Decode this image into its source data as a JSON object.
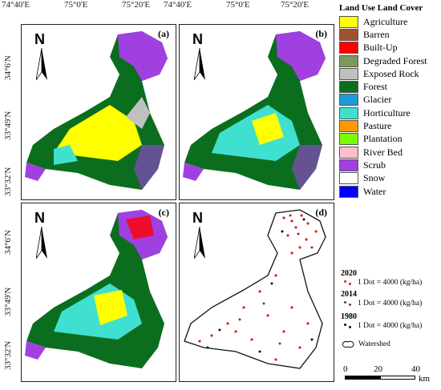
{
  "axes": {
    "top_ticks": [
      "74°40'E",
      "75°0'E",
      "75°20'E"
    ],
    "left_ticks": [
      "34°6'N",
      "33°49'N",
      "33°32'N"
    ]
  },
  "panels": [
    {
      "label": "(a)"
    },
    {
      "label": "(b)"
    },
    {
      "label": "(c)"
    },
    {
      "label": "(d)"
    }
  ],
  "north_label": "N",
  "legend": {
    "title": "Land Use Land Cover",
    "items": [
      {
        "label": "Agriculture",
        "color": "#ffff00"
      },
      {
        "label": "Barren",
        "color": "#a0522d"
      },
      {
        "label": "Built-Up",
        "color": "#ff0000"
      },
      {
        "label": "Degraded Forest",
        "color": "#7a9a5a"
      },
      {
        "label": "Exposed Rock",
        "color": "#c0c0c0"
      },
      {
        "label": "Forest",
        "color": "#0b6e1f"
      },
      {
        "label": "Glacier",
        "color": "#1e9ad6"
      },
      {
        "label": "Horticulture",
        "color": "#40e0d0"
      },
      {
        "label": "Pasture",
        "color": "#ff9900"
      },
      {
        "label": "Plantation",
        "color": "#7cfc00"
      },
      {
        "label": "River Bed",
        "color": "#ffc0cb"
      },
      {
        "label": "Scrub",
        "color": "#a040e0"
      },
      {
        "label": "Snow",
        "color": "#ffffff"
      },
      {
        "label": "Water",
        "color": "#0000ff"
      }
    ]
  },
  "dot_legend": [
    {
      "year": "2020",
      "text": "1 Dot = 4000 (kg/ha)",
      "color": "#e02020"
    },
    {
      "year": "2014",
      "text": "1 Dot = 4000 (kg/ha)",
      "color": "#8a2a5a"
    },
    {
      "year": "1980",
      "text": "1 Dot = 4000 (kg/ha)",
      "color": "#111111"
    }
  ],
  "watershed_label": "Watershed",
  "scale": {
    "ticks": [
      "0",
      "20",
      "40"
    ],
    "unit": "km"
  }
}
